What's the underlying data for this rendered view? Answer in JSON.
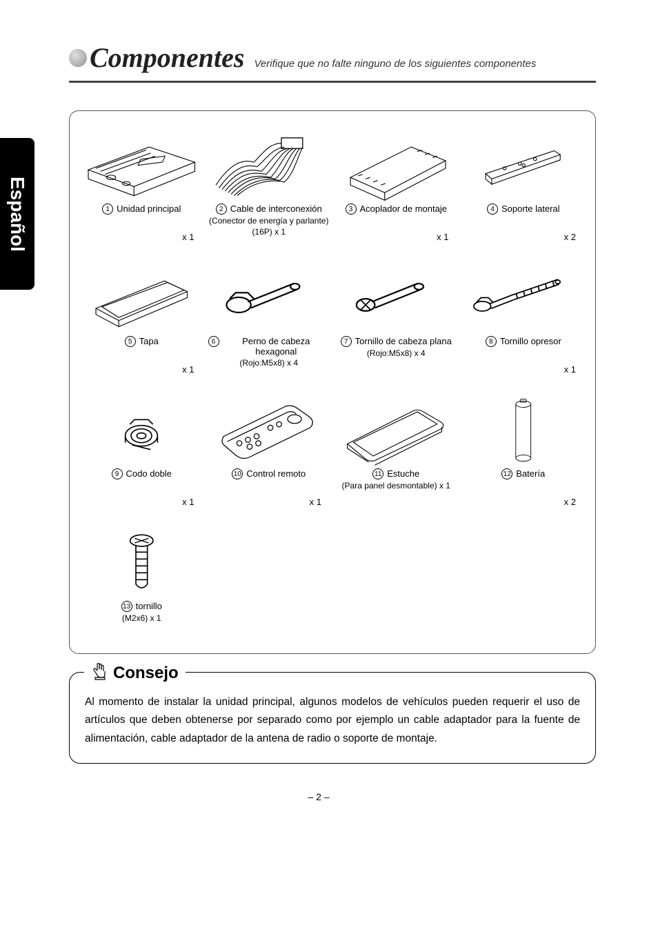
{
  "header": {
    "title": "Componentes",
    "subtitle": "Verifique que no falte ninguno de los siguientes componentes"
  },
  "sidetab": "Español",
  "components": [
    {
      "n": "1",
      "label": "Unidad principal",
      "sub": "",
      "qty": "x 1"
    },
    {
      "n": "2",
      "label": "Cable de interconexión",
      "sub": "(Conector de energía y parlante)\n(16P) x 1",
      "qty": ""
    },
    {
      "n": "3",
      "label": "Acoplador de montaje",
      "sub": "",
      "qty": "x 1"
    },
    {
      "n": "4",
      "label": "Soporte lateral",
      "sub": "",
      "qty": "x 2"
    },
    {
      "n": "5",
      "label": "Tapa",
      "sub": "",
      "qty": "x 1"
    },
    {
      "n": "6",
      "label": "Perno de cabeza hexagonal",
      "sub": "(Rojo:M5x8) x 4",
      "qty": ""
    },
    {
      "n": "7",
      "label": "Tornillo de cabeza plana",
      "sub": "(Rojo:M5x8) x 4",
      "qty": ""
    },
    {
      "n": "8",
      "label": "Tornillo opresor",
      "sub": "",
      "qty": "x 1"
    },
    {
      "n": "9",
      "label": "Codo doble",
      "sub": "",
      "qty": "x 1"
    },
    {
      "n": "10",
      "label": "Control remoto",
      "sub": "",
      "qty": "x 1"
    },
    {
      "n": "11",
      "label": "Estuche",
      "sub": "(Para panel desmontable) x 1",
      "qty": ""
    },
    {
      "n": "12",
      "label": "Batería",
      "sub": "",
      "qty": "x 2"
    },
    {
      "n": "13",
      "label": "tornillo",
      "sub": "(M2x6) x 1",
      "qty": ""
    }
  ],
  "tip": {
    "title": "Consejo",
    "body": "Al momento de instalar la unidad principal, algunos modelos de vehículos pueden requerir el uso de artículos que deben obtenerse por separado como por ejemplo un cable adaptador para la fuente de alimentación, cable adaptador de la antena de radio o soporte de montaje."
  },
  "page_number": "– 2 –",
  "svg": {
    "c1": "<svg viewBox='0 0 160 90' stroke='#000' fill='none' stroke-width='1'><path d='M10 50 L90 20 L150 40 L70 72 Z'/><path d='M10 50 L10 62 L70 84 L70 72'/><path d='M150 40 L150 52 L70 84'/><path d='M20 48 L86 24'/><path d='M26 52 L92 28'/><path d='M32 56 L98 32'/><ellipse cx='40' cy='60' rx='6' ry='3'/><ellipse cx='60' cy='68' rx='5' ry='2.5'/><rect x='100' y='34' width='30' height='8' transform='skewX(-30) rotate(-8 115 38)'/></svg>",
    "c2": "<svg viewBox='0 0 160 90' stroke='#000' fill='none' stroke-width='1'><rect x='96' y='8' width='28' height='14' stroke-width='1.2'/><path d='M96 15 C80 15 70 30 60 40 M100 20 C84 22 76 36 64 46 M104 22 C90 24 82 40 70 52 M108 22 C96 26 88 44 76 56 M112 22 C100 28 94 48 82 60 M116 22 C106 30 100 52 88 62 M120 22 C112 32 106 54 94 64 M124 20 C118 32 112 56 100 66'/><path d='M10 70 C30 40 46 36 60 40 M14 74 C34 46 50 42 64 46 M18 76 C38 50 54 48 70 52 M22 78 C42 54 58 52 76 56 M26 80 C46 58 64 56 82 60 M30 82 C50 60 70 58 88 62 M34 84 C54 64 76 60 94 64 M38 84 C58 66 82 62 100 66'/></svg>",
    "c3": "<svg viewBox='0 0 160 90' stroke='#000' fill='none' stroke-width='1'><path d='M20 60 L100 20 L145 38 L65 80 Z'/><path d='M20 60 L20 70 L65 90 L65 80'/><path d='M145 38 L145 48 L65 90'/><path d='M30 58 L36 56 M40 62 L46 60 M50 66 L56 64 M60 70 L66 68'/><path d='M108 26 L114 24 M118 30 L124 28 M128 34 L134 32'/></svg>",
    "c4": "<svg viewBox='0 0 160 90' stroke='#000' fill='none' stroke-width='1'><path d='M30 55 L120 25 L128 30 L38 62 Z'/><path d='M30 55 L30 62 L38 69 L38 62'/><path d='M128 30 L128 37 L38 69'/><circle cx='55' cy='48' r='2'/><circle cx='75' cy='42' r='2'/><circle cx='95' cy='36' r='2'/><circle cx='80' cy='44' r='2'/></svg>",
    "c5": "<svg viewBox='0 0 160 90' stroke='#000' fill='none' stroke-width='1'><path d='M20 58 L110 22 L140 36 L50 74 Z'/><path d='M20 58 L20 66 L50 82 L50 74'/><path d='M140 36 L140 44 L50 82'/><path d='M28 56 L114 24 L136 34 L50 70 Z'/></svg>",
    "c6": "<svg viewBox='0 0 80 40' stroke='#000' fill='none' stroke-width='1'><ellipse cx='20' cy='24' rx='8' ry='5'/><path d='M14 20 L18 16 L26 16 L30 20'/><path d='M26 22 L56 10'/><path d='M28 26 L58 14'/><ellipse cx='57' cy='12' rx='3' ry='2'/></svg>",
    "c7": "<svg viewBox='0 0 80 40' stroke='#000' fill='none' stroke-width='1'><ellipse cx='20' cy='24' rx='6' ry='4'/><path d='M17 21 L23 27 M23 21 L17 27' stroke-width='0.8'/><path d='M24 22 L54 10'/><path d='M26 26 L56 14'/><ellipse cx='55' cy='12' rx='3' ry='2'/></svg>",
    "c8": "<svg viewBox='0 0 100 40' stroke='#000' fill='none' stroke-width='1'><ellipse cx='16' cy='26' rx='7' ry='4'/><path d='M11 23 L15 19 L21 19 L25 23'/><path d='M22 24 L40 17'/><path d='M23 28 L41 21'/><path d='M40 17 L78 4 M41 21 L79 8'/><path d='M44 16 L45 20 M50 14 L51 18 M56 12 L57 16 M62 10 L63 14 M68 8 L69 12 M74 6 L75 10'/><ellipse cx='78' cy='6' rx='2' ry='1.5'/></svg>",
    "c9": "<svg viewBox='0 0 60 60' stroke='#000' fill='none' stroke-width='1'><ellipse cx='30' cy='34' rx='14' ry='9'/><ellipse cx='30' cy='34' rx='9' ry='6'/><ellipse cx='30' cy='34' rx='4' ry='2.5'/><path d='M20 24 L24 20 L36 20 L40 24'/><path d='M16 34 L16 40 M44 34 L44 40 M22 42 L38 46'/></svg>",
    "c10": "<svg viewBox='0 0 140 80' stroke='#000' fill='none' stroke-width='1'><path d='M18 56 Q14 52 18 46 L88 12 Q96 8 104 14 L118 24 Q124 30 118 36 L48 70 Q40 74 32 68 Z'/><path d='M22 52 L92 18 Q98 16 102 20'/><circle cx='36' cy='54' r='3'/><circle cx='46' cy='50' r='3'/><circle cx='56' cy='46' r='3'/><circle cx='48' cy='58' r='3'/><circle cx='58' cy='54' r='3'/><circle cx='72' cy='36' r='3'/><circle cx='82' cy='32' r='3'/><ellipse cx='100' cy='26' rx='8' ry='5'/></svg>",
    "c11": "<svg viewBox='0 0 160 90' stroke='#000' fill='none' stroke-width='1'><path d='M16 62 L104 18 Q110 16 116 20 L140 34 Q144 38 140 42 L52 84 Q46 86 40 82 Z'/><path d='M16 62 L16 68 L44 86'/><path d='M140 40 L140 46 L52 90'/><path d='M24 60 L108 20 L134 36 L50 78 Z'/></svg>",
    "c12": "<svg viewBox='0 0 50 110' stroke='#000' fill='none' stroke-width='1'><ellipse cx='25' cy='12' rx='12' ry='5'/><path d='M13 12 L13 98'/><path d='M37 12 L37 98'/><ellipse cx='25' cy='98' rx='12' ry='5'/><rect x='20' y='4' width='10' height='5' rx='2'/></svg>",
    "c13": "<svg viewBox='0 0 40 60' stroke='#000' fill='none' stroke-width='1'><ellipse cx='20' cy='10' rx='10' ry='5'/><path d='M14 8 L26 12 M26 8 L14 12' stroke-width='0.8'/><path d='M15 14 L15 48 M25 14 L25 48'/><path d='M15 20 L25 20 M15 26 L25 26 M15 32 L25 32 M15 38 L25 38 M15 44 L25 44'/><path d='M15 48 Q20 54 25 48'/></svg>",
    "handicon": "<svg width='24' height='28' viewBox='0 0 24 28' stroke='#000' fill='none' stroke-width='1.2'><path d='M9 14 V5 a1.5 1.5 0 0 1 3 0 V12'/><path d='M12 12 V6 a1.5 1.5 0 0 1 3 0 V13'/><path d='M15 13 V8 a1.5 1.5 0 0 1 3 0 V15'/><path d='M9 14 L6 11 a1.5 1.5 0 0 0 -2 2 L8 19 Q10 24 14 24 L16 24 Q20 24 20 19 V15'/><path d='M6 24 h14 v3 h-14 z'/></svg>"
  }
}
